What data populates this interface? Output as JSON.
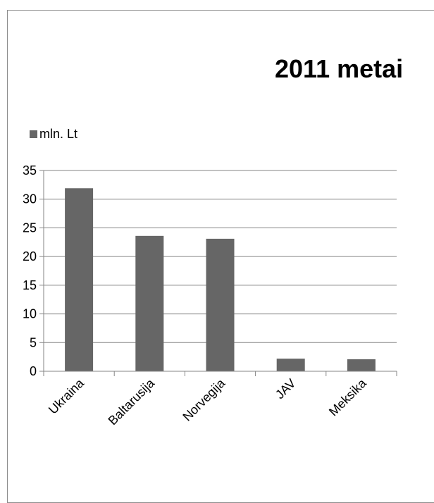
{
  "chart_data": {
    "type": "bar",
    "title": "2011 metai",
    "categories": [
      "Ukraina",
      "Baltarusija",
      "Norvegija",
      "JAV",
      "Meksika"
    ],
    "series": [
      {
        "name": "mln. Lt",
        "values": [
          31.9,
          23.6,
          23.1,
          2.2,
          2.1
        ]
      }
    ],
    "xlabel": "",
    "ylabel": "",
    "ylim": [
      0,
      35
    ],
    "yticks": [
      0,
      5,
      10,
      15,
      20,
      25,
      30,
      35
    ],
    "grid": true,
    "legend": "top-left",
    "bar_color": "#666666",
    "grid_color": "#868686"
  }
}
